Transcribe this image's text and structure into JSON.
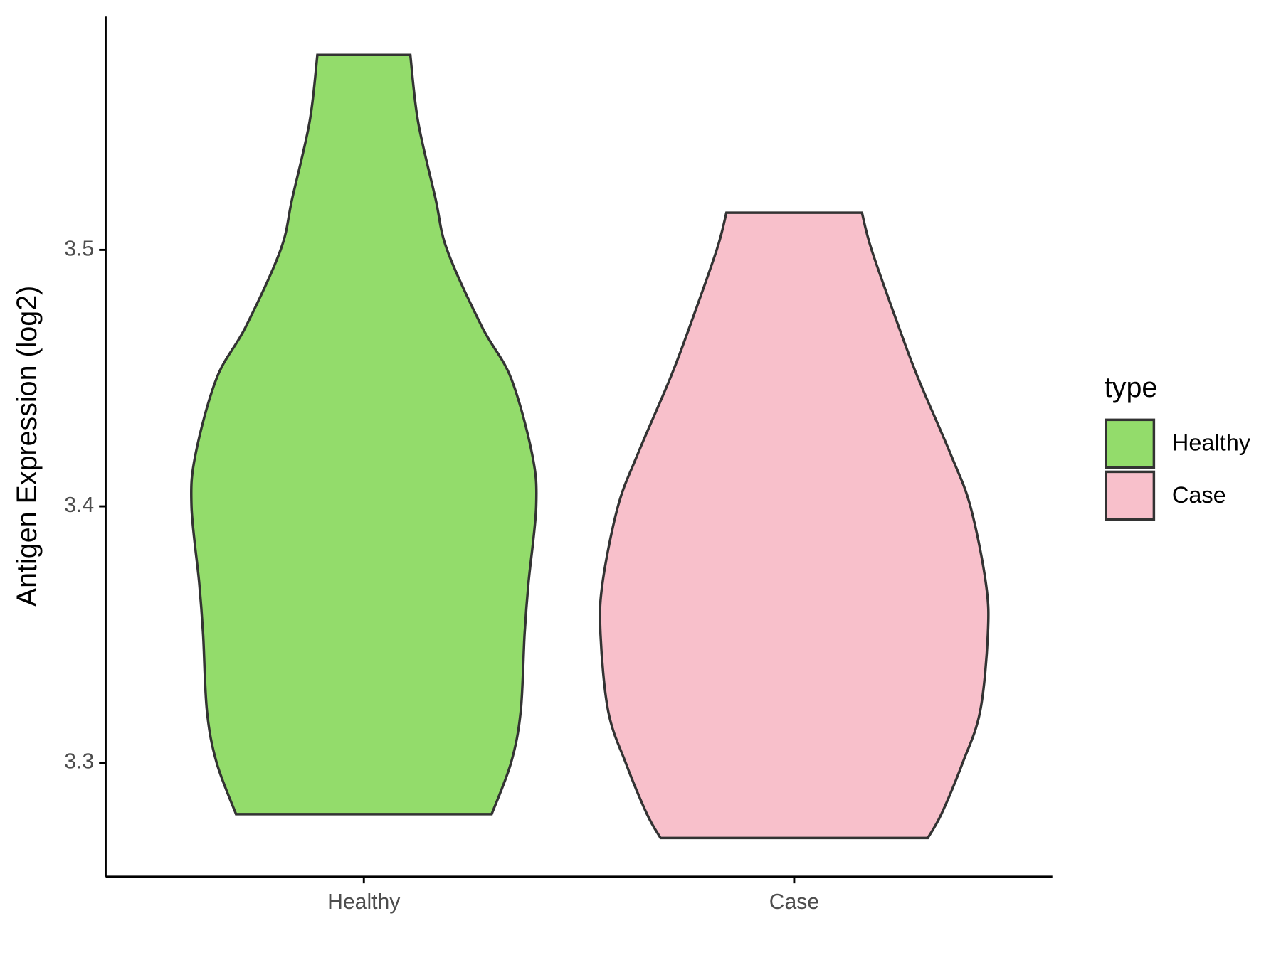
{
  "chart_data": {
    "type": "violin",
    "y_label": "Antigen Expression (log2)",
    "categories": [
      "Healthy",
      "Case"
    ],
    "series": [
      {
        "name": "Healthy",
        "color": "#93dc6b",
        "y": [
          3.576,
          3.55,
          3.52,
          3.5,
          3.47,
          3.45,
          3.42,
          3.4,
          3.37,
          3.35,
          3.32,
          3.3,
          3.28
        ],
        "width": [
          0.24,
          0.28,
          0.37,
          0.43,
          0.61,
          0.76,
          0.87,
          0.89,
          0.85,
          0.83,
          0.81,
          0.76,
          0.66
        ]
      },
      {
        "name": "Case",
        "color": "#f8c0cb",
        "y": [
          3.5145,
          3.5,
          3.47,
          3.45,
          3.42,
          3.4,
          3.37,
          3.35,
          3.32,
          3.3,
          3.28,
          3.2707
        ],
        "width": [
          0.35,
          0.4,
          0.54,
          0.64,
          0.81,
          0.91,
          0.99,
          1.0,
          0.96,
          0.87,
          0.76,
          0.69
        ]
      }
    ],
    "ylim": [
      3.2556,
      3.591
    ],
    "yticks": [
      3.3,
      3.4,
      3.5
    ],
    "legend_title": "type",
    "legend": "right"
  }
}
